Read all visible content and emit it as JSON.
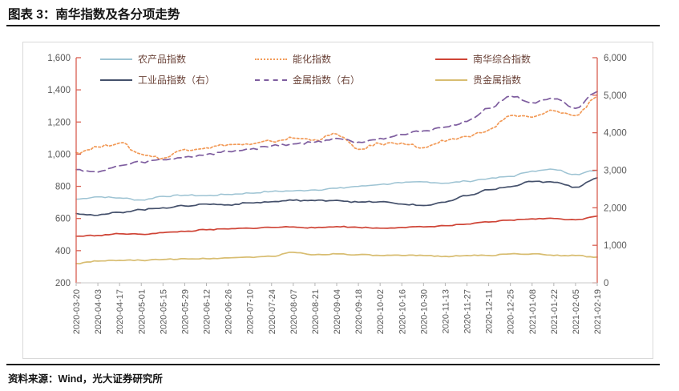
{
  "page": {
    "title": "图表 3：南华指数及各分项走势",
    "source": "资料来源：Wind，光大证券研究所"
  },
  "colors": {
    "value_axis": "#d85f51",
    "category_axis": "#c9c9c9",
    "tick_label": "#595959",
    "legend_text": "#6b4339",
    "rule": "#1c1c1c",
    "panel_border": "#d9d9d9"
  },
  "chart_data": {
    "type": "line",
    "title": "南华指数及各分项走势",
    "legend_position": "top",
    "grid": false,
    "x_labels": [
      "2020-03-20",
      "2020-04-03",
      "2020-04-17",
      "2020-05-01",
      "2020-05-15",
      "2020-05-29",
      "2020-06-12",
      "2020-06-26",
      "2020-07-10",
      "2020-07-24",
      "2020-08-07",
      "2020-08-21",
      "2020-09-04",
      "2020-09-18",
      "2020-10-02",
      "2020-10-16",
      "2020-10-30",
      "2020-11-13",
      "2020-11-27",
      "2020-12-11",
      "2020-12-25",
      "2021-01-08",
      "2021-01-22",
      "2021-02-05",
      "2021-02-19"
    ],
    "left_axis": {
      "min": 200,
      "max": 1600,
      "step": 200,
      "labels": [
        "1,600",
        "1,400",
        "1,200",
        "1,000",
        "800",
        "600",
        "400",
        "200"
      ]
    },
    "right_axis": {
      "min": 0,
      "max": 6000,
      "step": 1000,
      "labels": [
        "6,000",
        "5,000",
        "4,000",
        "3,000",
        "2,000",
        "1,000",
        "0"
      ]
    },
    "series": [
      {
        "id": "agri",
        "name": "农产品指数",
        "axis": "left",
        "color": "#9dc3d3",
        "style": "solid",
        "jitter": 4,
        "values": [
          720,
          735,
          728,
          715,
          738,
          745,
          742,
          750,
          758,
          768,
          772,
          778,
          788,
          800,
          812,
          822,
          828,
          820,
          832,
          848,
          862,
          895,
          905,
          875,
          900
        ]
      },
      {
        "id": "energy",
        "name": "能化指数",
        "axis": "left",
        "color": "#f29a57",
        "style": "dotted",
        "jitter": 9,
        "values": [
          1010,
          1045,
          1070,
          1000,
          975,
          1030,
          1040,
          1060,
          1060,
          1080,
          1100,
          1090,
          1125,
          1030,
          1065,
          1070,
          1040,
          1080,
          1110,
          1150,
          1240,
          1230,
          1270,
          1240,
          1360
        ]
      },
      {
        "id": "composite",
        "name": "南华综合指数",
        "axis": "left",
        "color": "#cf4436",
        "style": "solid",
        "jitter": 3,
        "values": [
          490,
          495,
          505,
          502,
          512,
          520,
          530,
          535,
          540,
          545,
          548,
          542,
          550,
          545,
          540,
          545,
          548,
          555,
          565,
          578,
          590,
          598,
          600,
          592,
          615
        ]
      },
      {
        "id": "industrial",
        "name": "工业品指数（右）",
        "axis": "right",
        "color": "#44506b",
        "style": "solid",
        "jitter": 18,
        "values": [
          1850,
          1800,
          1880,
          1950,
          2000,
          2050,
          2100,
          2080,
          2130,
          2160,
          2200,
          2190,
          2200,
          2150,
          2160,
          2100,
          2060,
          2150,
          2320,
          2480,
          2560,
          2700,
          2680,
          2550,
          2800
        ]
      },
      {
        "id": "metals",
        "name": "金属指数（右）",
        "axis": "right",
        "color": "#7e5d9f",
        "style": "dashed",
        "jitter": 30,
        "values": [
          3020,
          2950,
          3120,
          3220,
          3280,
          3350,
          3420,
          3500,
          3560,
          3650,
          3700,
          3750,
          3850,
          3750,
          3850,
          3950,
          4050,
          4150,
          4300,
          4650,
          4980,
          4800,
          4900,
          4650,
          5100
        ]
      },
      {
        "id": "precious",
        "name": "贵金属指数",
        "axis": "left",
        "color": "#d8bd71",
        "style": "solid",
        "jitter": 3,
        "values": [
          320,
          335,
          340,
          340,
          345,
          350,
          350,
          355,
          360,
          365,
          390,
          375,
          380,
          375,
          370,
          370,
          370,
          365,
          370,
          370,
          380,
          380,
          370,
          370,
          360
        ]
      }
    ],
    "legend_rows": [
      [
        "agri",
        "energy",
        "composite"
      ],
      [
        "industrial",
        "metals",
        "precious"
      ]
    ]
  }
}
